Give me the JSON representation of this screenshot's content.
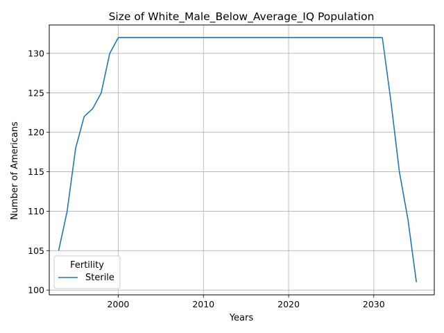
{
  "chart_data": {
    "type": "line",
    "title": "Size of White_Male_Below_Average_IQ Population",
    "xlabel": "Years",
    "ylabel": "Number of Americans",
    "xlim": [
      1991.9,
      2037.1
    ],
    "ylim": [
      99.4,
      133.6
    ],
    "xticks": [
      2000,
      2010,
      2020,
      2030
    ],
    "yticks": [
      100,
      105,
      110,
      115,
      120,
      125,
      130
    ],
    "grid": true,
    "legend": {
      "title": "Fertility",
      "placement": "lower-left"
    },
    "series": [
      {
        "name": "Sterile",
        "color": "#1f77b4",
        "x": [
          1993,
          1994,
          1995,
          1996,
          1997,
          1998,
          1999,
          2000,
          2001,
          2005,
          2010,
          2015,
          2020,
          2025,
          2030,
          2031,
          2032,
          2033,
          2034,
          2035
        ],
        "y": [
          105,
          110,
          118,
          122,
          123,
          125,
          130,
          132,
          132,
          132,
          132,
          132,
          132,
          132,
          132,
          132,
          124,
          115,
          109,
          101
        ]
      }
    ]
  }
}
